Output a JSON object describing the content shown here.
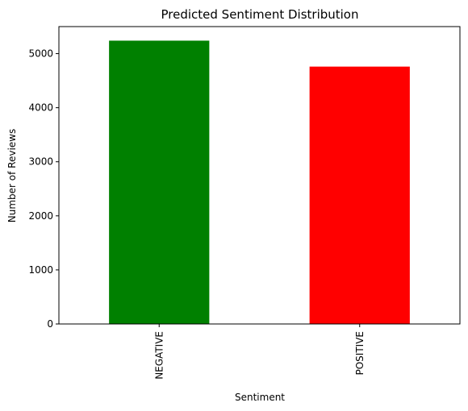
{
  "chart_data": {
    "type": "bar",
    "title": "Predicted Sentiment Distribution",
    "xlabel": "Sentiment",
    "ylabel": "Number of Reviews",
    "categories": [
      "NEGATIVE",
      "POSITIVE"
    ],
    "values": [
      5240,
      4760
    ],
    "colors": [
      "#008000",
      "#ff0000"
    ],
    "ylim": [
      0,
      5500
    ],
    "yticks": [
      0,
      1000,
      2000,
      3000,
      4000,
      5000
    ],
    "ytick_labels": [
      "0",
      "1000",
      "2000",
      "3000",
      "4000",
      "5000"
    ],
    "xtick_rotation": "vertical",
    "grid": false,
    "legend": false
  }
}
